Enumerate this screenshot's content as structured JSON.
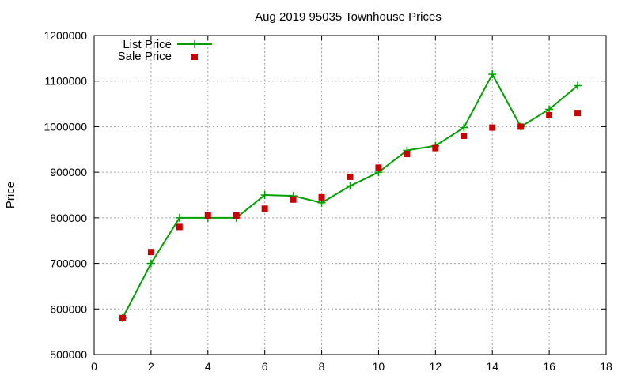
{
  "chart_data": {
    "type": "line",
    "title": "Aug 2019 95035 Townhouse Prices",
    "xlabel": "",
    "ylabel": "Price",
    "xlim": [
      0,
      18
    ],
    "ylim": [
      500000,
      1200000
    ],
    "xticks": [
      0,
      2,
      4,
      6,
      8,
      10,
      12,
      14,
      16,
      18
    ],
    "yticks": [
      500000,
      600000,
      700000,
      800000,
      900000,
      1000000,
      1100000,
      1200000
    ],
    "grid": true,
    "legend_position": "top-left",
    "series": [
      {
        "name": "List Price",
        "style": "line-with-plus-markers",
        "color": "#00a000",
        "x": [
          1,
          2,
          3,
          4,
          5,
          6,
          7,
          8,
          9,
          10,
          11,
          12,
          13,
          14,
          15,
          16,
          17
        ],
        "y": [
          580000,
          700000,
          800000,
          800000,
          800000,
          850000,
          848000,
          833000,
          870000,
          900000,
          948000,
          958000,
          998000,
          1115000,
          1000000,
          1038000,
          1090000
        ]
      },
      {
        "name": "Sale Price",
        "style": "square-markers",
        "color": "#cc0000",
        "x": [
          1,
          2,
          3,
          4,
          5,
          6,
          7,
          8,
          9,
          10,
          11,
          12,
          13,
          14,
          15,
          16,
          17
        ],
        "y": [
          580000,
          725000,
          780000,
          805000,
          805000,
          820000,
          840000,
          845000,
          890000,
          910000,
          940000,
          953000,
          980000,
          998000,
          1000000,
          1025000,
          1030000
        ]
      }
    ]
  }
}
